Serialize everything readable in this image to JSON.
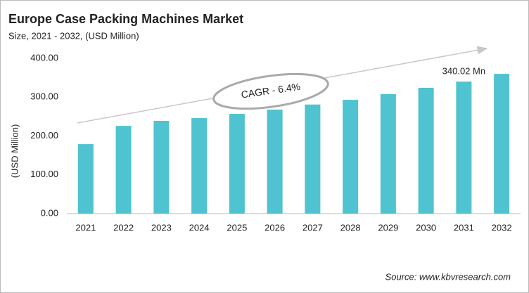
{
  "chart_data": {
    "type": "bar",
    "title": "Europe Case Packing Machines Market",
    "subtitle": "Size, 2021 - 2032, (USD Million)",
    "y_label": "(USD Million)",
    "categories": [
      "2021",
      "2022",
      "2023",
      "2024",
      "2025",
      "2026",
      "2027",
      "2028",
      "2029",
      "2030",
      "2031",
      "2032"
    ],
    "values": [
      179,
      226,
      239,
      246,
      257,
      268,
      281,
      293,
      308,
      324,
      340.02,
      360
    ],
    "value_labels": [
      null,
      null,
      null,
      null,
      null,
      null,
      null,
      null,
      null,
      null,
      "340.02 Mn",
      null
    ],
    "color": "#4fc3cf",
    "ylim": [
      0,
      400
    ],
    "yticks": [
      {
        "value": 0,
        "label": "0.00"
      },
      {
        "value": 100,
        "label": "100.00"
      },
      {
        "value": 200,
        "label": "200.00"
      },
      {
        "value": 300,
        "label": "300.00"
      },
      {
        "value": 400,
        "label": "400.00"
      }
    ],
    "grid": false,
    "annotation": "CAGR - 6.4%",
    "source": "Source: www.kbvresearch.com"
  }
}
